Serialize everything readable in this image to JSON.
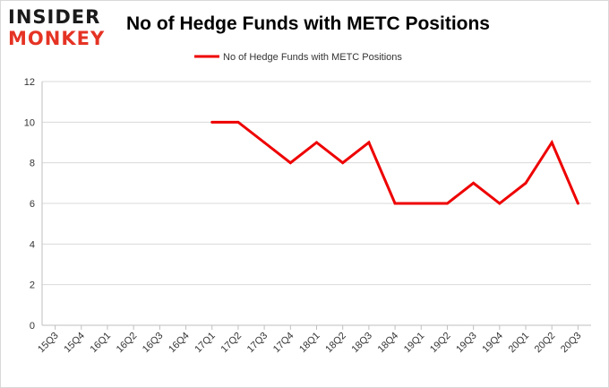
{
  "logo": {
    "line1": "INSIDER",
    "line2": "MONKEY"
  },
  "chart_data": {
    "type": "line",
    "title": "No of Hedge Funds with METC Positions",
    "xlabel": "",
    "ylabel": "",
    "categories": [
      "15Q3",
      "15Q4",
      "16Q1",
      "16Q2",
      "16Q3",
      "16Q4",
      "17Q1",
      "17Q2",
      "17Q3",
      "17Q4",
      "18Q1",
      "18Q2",
      "18Q3",
      "18Q4",
      "19Q1",
      "19Q2",
      "19Q3",
      "19Q4",
      "20Q1",
      "20Q2",
      "20Q3"
    ],
    "series": [
      {
        "name": "No of Hedge Funds with METC Positions",
        "color": "#ee0000",
        "values": [
          null,
          null,
          null,
          null,
          null,
          null,
          10,
          10,
          9,
          8,
          9,
          8,
          9,
          6,
          6,
          6,
          7,
          6,
          7,
          9,
          6
        ]
      }
    ],
    "ylim": [
      0,
      12
    ],
    "yticks": [
      0,
      2,
      4,
      6,
      8,
      10,
      12
    ],
    "grid": true,
    "legend_position": "top-center"
  }
}
